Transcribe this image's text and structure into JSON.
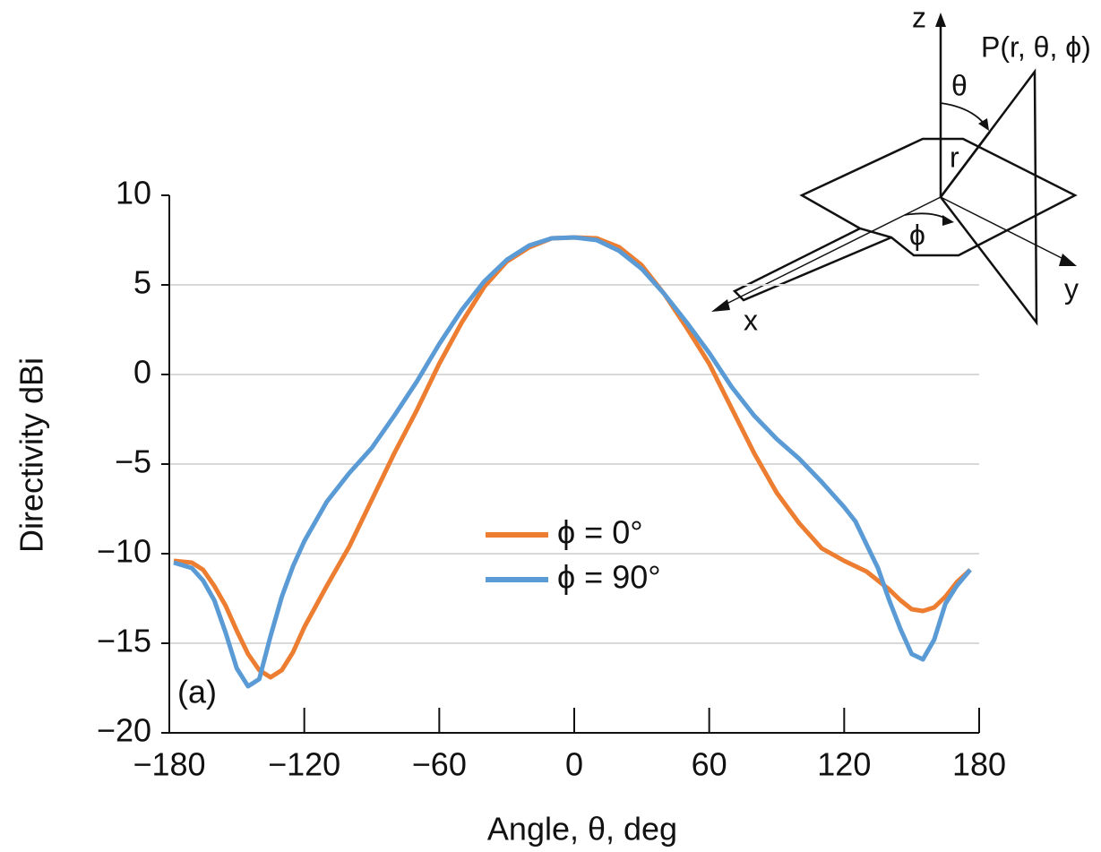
{
  "chart_data": {
    "type": "line",
    "x_label": "Angle, θ, deg",
    "y_label": "Directivity dBi",
    "annotation": "(a)",
    "diagram_labels": [
      "z",
      "P(r, θ, ϕ)",
      "θ",
      "r",
      "ϕ",
      "x",
      "y"
    ],
    "x": [
      -178,
      -170,
      -165,
      -160,
      -155,
      -150,
      -145,
      -140,
      -135,
      -130,
      -125,
      -120,
      -110,
      -100,
      -90,
      -80,
      -70,
      -60,
      -50,
      -40,
      -30,
      -20,
      -10,
      0,
      10,
      20,
      30,
      40,
      50,
      60,
      70,
      80,
      90,
      100,
      110,
      120,
      125,
      130,
      135,
      140,
      145,
      150,
      155,
      160,
      165,
      170,
      176
    ],
    "series": [
      {
        "name": "ϕ = 0°",
        "color": "#ed7d31",
        "values": [
          -10.4,
          -10.5,
          -10.9,
          -11.8,
          -12.9,
          -14.3,
          -15.6,
          -16.5,
          -16.9,
          -16.5,
          -15.5,
          -14.1,
          -11.8,
          -9.6,
          -7.0,
          -4.4,
          -2.0,
          0.6,
          2.9,
          4.9,
          6.3,
          7.1,
          7.6,
          7.65,
          7.6,
          7.1,
          6.1,
          4.5,
          2.6,
          0.6,
          -1.9,
          -4.4,
          -6.6,
          -8.3,
          -9.7,
          -10.4,
          -10.7,
          -11.0,
          -11.5,
          -12.0,
          -12.6,
          -13.1,
          -13.2,
          -13.0,
          -12.4,
          -11.6,
          -10.9
        ]
      },
      {
        "name": "ϕ = 90°",
        "color": "#5b9bd5",
        "values": [
          -10.5,
          -10.8,
          -11.5,
          -12.6,
          -14.4,
          -16.4,
          -17.4,
          -17.0,
          -14.6,
          -12.4,
          -10.7,
          -9.3,
          -7.1,
          -5.5,
          -4.1,
          -2.3,
          -0.4,
          1.7,
          3.6,
          5.2,
          6.4,
          7.2,
          7.6,
          7.65,
          7.5,
          6.9,
          5.9,
          4.5,
          2.9,
          1.2,
          -0.7,
          -2.3,
          -3.6,
          -4.7,
          -6.0,
          -7.4,
          -8.2,
          -9.5,
          -10.8,
          -12.6,
          -14.2,
          -15.6,
          -15.9,
          -14.8,
          -12.8,
          -11.8,
          -10.9
        ]
      }
    ],
    "xlim": [
      -180,
      180
    ],
    "xticks": [
      {
        "value": -180,
        "label": "−180"
      },
      {
        "value": -120,
        "label": "−120"
      },
      {
        "value": -60,
        "label": "−60"
      },
      0,
      60,
      120,
      180
    ],
    "ylim": [
      -20,
      10
    ],
    "yticks": [
      {
        "value": -20,
        "label": "−20"
      },
      {
        "value": -15,
        "label": "−15"
      },
      {
        "value": -10,
        "label": "−10"
      },
      {
        "value": -5,
        "label": "−5"
      },
      0,
      5,
      10
    ],
    "grid": true
  }
}
